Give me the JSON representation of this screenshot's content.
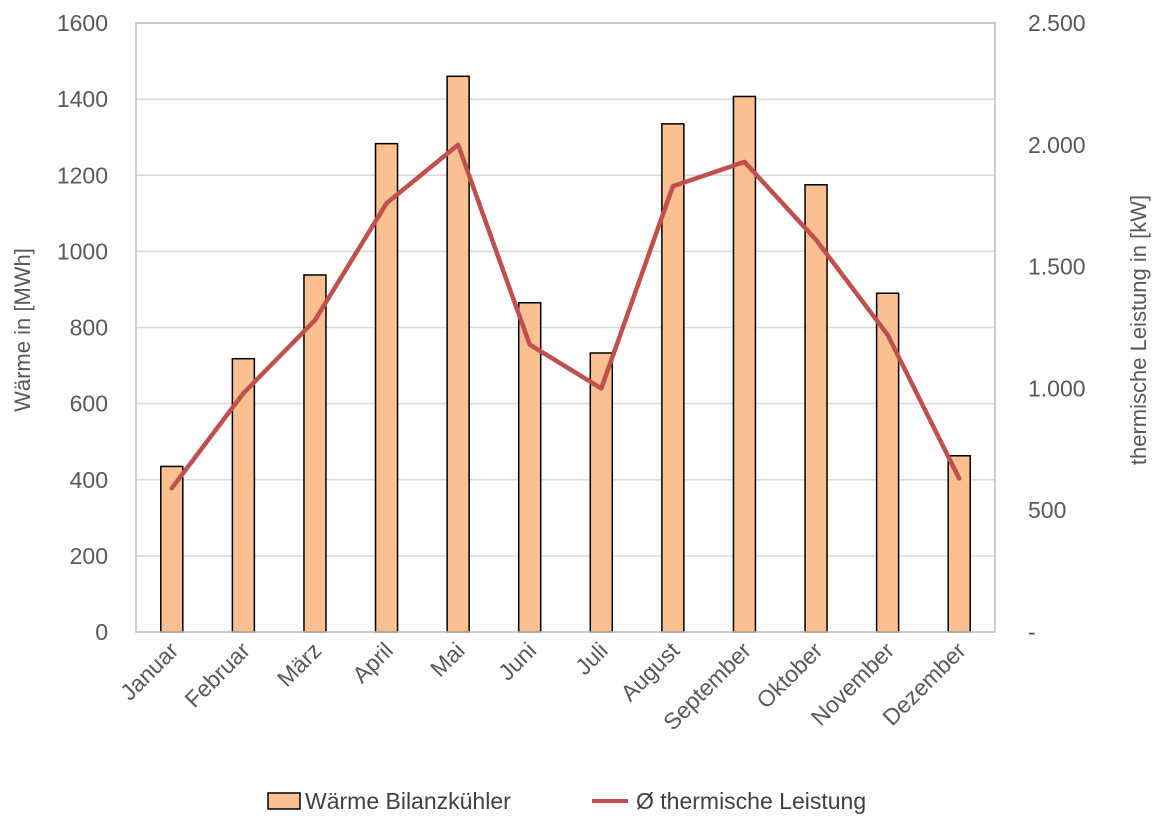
{
  "chart_data": {
    "type": "bar",
    "categories": [
      "Januar",
      "Februar",
      "März",
      "April",
      "Mai",
      "Juni",
      "Juli",
      "August",
      "September",
      "Oktober",
      "November",
      "Dezember"
    ],
    "series": [
      {
        "name": "Wärme Bilanzkühler",
        "type": "bar",
        "axis": "left",
        "color": "#FAC090",
        "values": [
          435,
          718,
          938,
          1283,
          1460,
          865,
          733,
          1335,
          1407,
          1175,
          890,
          463
        ]
      },
      {
        "name": "Ø thermische Leistung",
        "type": "line",
        "axis": "right",
        "color": "#C0504D",
        "values": [
          590,
          980,
          1280,
          1760,
          2000,
          1180,
          1000,
          1830,
          1930,
          1610,
          1220,
          630
        ]
      }
    ],
    "ylabel": "Wärme in [MWh]",
    "ylim": [
      0,
      1600
    ],
    "yticks": [
      0,
      200,
      400,
      600,
      800,
      1000,
      1200,
      1400,
      1600
    ],
    "ytick_labels": [
      "0",
      "200",
      "400",
      "600",
      "800",
      "1000",
      "1200",
      "1400",
      "1600"
    ],
    "y2label": "thermische Leistung in [kW]",
    "y2lim": [
      0,
      2500
    ],
    "y2ticks": [
      0,
      500,
      1000,
      1500,
      2000,
      2500
    ],
    "y2tick_labels": [
      "-",
      "500",
      "1.000",
      "1.500",
      "2.000",
      "2.500"
    ],
    "grid": true,
    "legend_position": "bottom"
  }
}
